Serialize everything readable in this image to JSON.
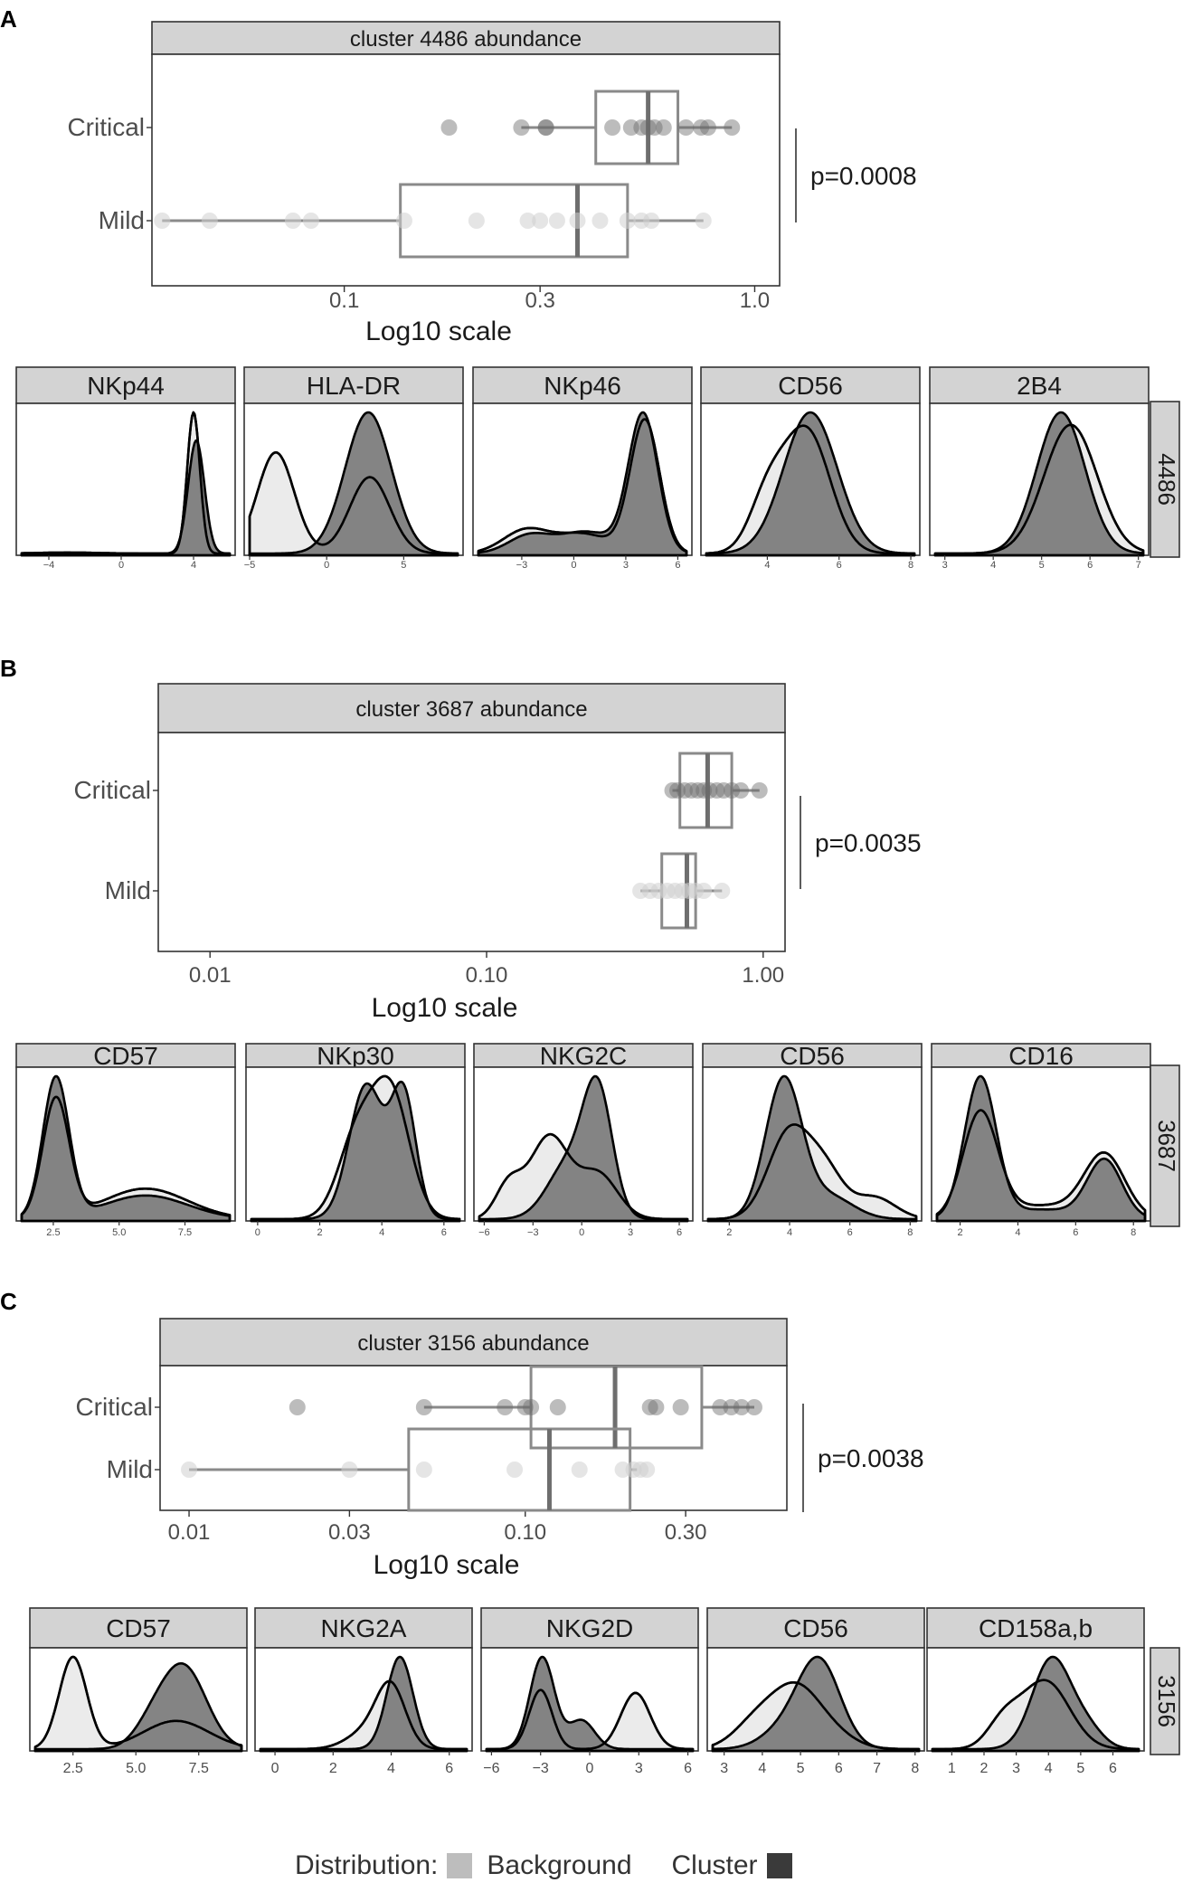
{
  "legend": {
    "title": "Distribution:",
    "items": [
      {
        "label": "Background",
        "color": "#bdbdbd"
      },
      {
        "label": "Cluster",
        "color": "#3a3a3a"
      }
    ]
  },
  "colors": {
    "background_fill": "#ebebeb",
    "cluster_fill": "#7a7a7a",
    "strip": "#d3d3d3",
    "box": "#8a8a8a"
  },
  "chart_data": [
    {
      "panel": "A",
      "type": "boxplot",
      "title": "cluster 4486 abundance",
      "xlabel": "Log10 scale",
      "scale": "log10",
      "xlim": [
        0.034,
        1.15
      ],
      "ticks": [
        0.1,
        0.3,
        1.0
      ],
      "tick_labels": [
        "0.1",
        "0.3",
        "1.0"
      ],
      "groups": [
        {
          "name": "Critical",
          "whisker": [
            0.27,
            0.88
          ],
          "box": [
            0.41,
            0.65
          ],
          "median": 0.55,
          "points": [
            0.18,
            0.27,
            0.31,
            0.31,
            0.45,
            0.5,
            0.53,
            0.55,
            0.57,
            0.6,
            0.68,
            0.74,
            0.77,
            0.88
          ]
        },
        {
          "name": "Mild",
          "whisker": [
            0.036,
            0.75
          ],
          "box": [
            0.137,
            0.49
          ],
          "median": 0.37,
          "points": [
            0.036,
            0.047,
            0.075,
            0.083,
            0.14,
            0.21,
            0.28,
            0.3,
            0.33,
            0.37,
            0.42,
            0.49,
            0.53,
            0.56,
            0.75
          ]
        }
      ],
      "pvalue": "p=0.0008",
      "densities": {
        "cluster_label": "4486",
        "markers": [
          {
            "name": "NKp44",
            "xlim": [
              -5.5,
              6
            ],
            "ticks": [
              -4,
              0,
              4
            ],
            "tick_labels": [
              "−4",
              "0",
              "4"
            ],
            "background": [
              {
                "m": 4.0,
                "s": 0.35,
                "w": 0.97
              },
              {
                "m": -3.0,
                "s": 1.6,
                "w": 0.03
              }
            ],
            "cluster": [
              {
                "m": 4.15,
                "s": 0.45,
                "w": 1.0
              }
            ]
          },
          {
            "name": "HLA-DR",
            "xlim": [
              -5,
              8.5
            ],
            "ticks": [
              -5,
              0,
              5
            ],
            "tick_labels": [
              "−5",
              "0",
              "5"
            ],
            "background": [
              {
                "m": -3.3,
                "s": 1.2,
                "w": 0.55
              },
              {
                "m": 2.8,
                "s": 1.3,
                "w": 0.45
              }
            ],
            "cluster": [
              {
                "m": 2.7,
                "s": 1.5,
                "w": 1.0
              }
            ]
          },
          {
            "name": "NKp46",
            "xlim": [
              -5.5,
              6.5
            ],
            "ticks": [
              -3,
              0,
              3,
              6
            ],
            "tick_labels": [
              "−3",
              "0",
              "3",
              "6"
            ],
            "background": [
              {
                "m": -2.8,
                "s": 1.3,
                "w": 0.17
              },
              {
                "m": 0.5,
                "s": 1.6,
                "w": 0.18
              },
              {
                "m": 4.1,
                "s": 0.85,
                "w": 0.65
              }
            ],
            "cluster": [
              {
                "m": -2.6,
                "s": 1.2,
                "w": 0.12
              },
              {
                "m": 0.7,
                "s": 1.6,
                "w": 0.2
              },
              {
                "m": 4.0,
                "s": 0.85,
                "w": 0.68
              }
            ]
          },
          {
            "name": "CD56",
            "xlim": [
              2.3,
              8.1
            ],
            "ticks": [
              4,
              6,
              8
            ],
            "tick_labels": [
              "4",
              "6",
              "8"
            ],
            "background": [
              {
                "m": 5.1,
                "s": 0.65,
                "w": 0.75
              },
              {
                "m": 4.0,
                "s": 0.5,
                "w": 0.25
              }
            ],
            "cluster": [
              {
                "m": 5.2,
                "s": 0.75,
                "w": 1.0
              }
            ]
          },
          {
            "name": "2B4",
            "xlim": [
              2.8,
              7.1
            ],
            "ticks": [
              3,
              4,
              5,
              6,
              7
            ],
            "tick_labels": [
              "3",
              "4",
              "5",
              "6",
              "7"
            ],
            "background": [
              {
                "m": 5.6,
                "s": 0.55,
                "w": 1.0
              }
            ],
            "cluster": [
              {
                "m": 5.4,
                "s": 0.5,
                "w": 1.0
              }
            ]
          }
        ]
      }
    },
    {
      "panel": "B",
      "type": "boxplot",
      "title": "cluster 3687 abundance",
      "xlabel": "Log10 scale",
      "scale": "log10",
      "xlim": [
        0.0065,
        1.2
      ],
      "ticks": [
        0.01,
        0.1,
        1.0
      ],
      "tick_labels": [
        "0.01",
        "0.10",
        "1.00"
      ],
      "groups": [
        {
          "name": "Critical",
          "whisker": [
            0.47,
            0.97
          ],
          "box": [
            0.5,
            0.77
          ],
          "median": 0.63,
          "points": [
            0.47,
            0.49,
            0.52,
            0.55,
            0.58,
            0.61,
            0.64,
            0.68,
            0.72,
            0.77,
            0.83,
            0.97
          ]
        },
        {
          "name": "Mild",
          "whisker": [
            0.36,
            0.71
          ],
          "box": [
            0.43,
            0.57
          ],
          "median": 0.53,
          "points": [
            0.36,
            0.39,
            0.42,
            0.45,
            0.48,
            0.51,
            0.54,
            0.57,
            0.61,
            0.71
          ]
        }
      ],
      "pvalue": "p=0.0035",
      "densities": {
        "cluster_label": "3687",
        "markers": [
          {
            "name": "CD57",
            "xlim": [
              1.3,
              9.2
            ],
            "ticks": [
              2.5,
              5.0,
              7.5
            ],
            "tick_labels": [
              "2.5",
              "5.0",
              "7.5"
            ],
            "background": [
              {
                "m": 2.6,
                "s": 0.5,
                "w": 0.55
              },
              {
                "m": 6.0,
                "s": 1.6,
                "w": 0.45
              }
            ],
            "cluster": [
              {
                "m": 2.6,
                "s": 0.5,
                "w": 0.65
              },
              {
                "m": 6.0,
                "s": 1.6,
                "w": 0.35
              }
            ]
          },
          {
            "name": "NKp30",
            "xlim": [
              -0.2,
              6.5
            ],
            "ticks": [
              0,
              2,
              4,
              6
            ],
            "tick_labels": [
              "0",
              "2",
              "4",
              "6"
            ],
            "background": [
              {
                "m": 4.3,
                "s": 0.6,
                "w": 0.6
              },
              {
                "m": 3.2,
                "s": 0.6,
                "w": 0.4
              }
            ],
            "cluster": [
              {
                "m": 3.5,
                "s": 0.55,
                "w": 0.6
              },
              {
                "m": 4.7,
                "s": 0.4,
                "w": 0.4
              }
            ]
          },
          {
            "name": "NKG2C",
            "xlim": [
              -6.3,
              6.5
            ],
            "ticks": [
              -6,
              -3,
              0,
              3,
              6
            ],
            "tick_labels": [
              "−6",
              "−3",
              "0",
              "3",
              "6"
            ],
            "background": [
              {
                "m": -2.0,
                "s": 1.2,
                "w": 0.55
              },
              {
                "m": -4.5,
                "s": 0.8,
                "w": 0.15
              },
              {
                "m": 1.0,
                "s": 1.2,
                "w": 0.3
              }
            ],
            "cluster": [
              {
                "m": 1.0,
                "s": 0.9,
                "w": 0.6
              },
              {
                "m": -0.8,
                "s": 1.3,
                "w": 0.4
              }
            ]
          },
          {
            "name": "CD56",
            "xlim": [
              1.3,
              8.2
            ],
            "ticks": [
              2,
              4,
              6,
              8
            ],
            "tick_labels": [
              "2",
              "4",
              "6",
              "8"
            ],
            "background": [
              {
                "m": 4.0,
                "s": 0.7,
                "w": 0.6
              },
              {
                "m": 5.2,
                "s": 0.6,
                "w": 0.25
              },
              {
                "m": 6.8,
                "s": 0.7,
                "w": 0.15
              }
            ],
            "cluster": [
              {
                "m": 3.8,
                "s": 0.6,
                "w": 0.82
              },
              {
                "m": 5.3,
                "s": 0.8,
                "w": 0.18
              }
            ]
          },
          {
            "name": "CD16",
            "xlim": [
              1.2,
              8.4
            ],
            "ticks": [
              2,
              4,
              6,
              8
            ],
            "tick_labels": [
              "2",
              "4",
              "6",
              "8"
            ],
            "background": [
              {
                "m": 2.7,
                "s": 0.6,
                "w": 0.5
              },
              {
                "m": 7.0,
                "s": 0.7,
                "w": 0.35
              },
              {
                "m": 4.8,
                "s": 1.4,
                "w": 0.15
              }
            ],
            "cluster": [
              {
                "m": 2.7,
                "s": 0.55,
                "w": 0.62
              },
              {
                "m": 7.0,
                "s": 0.6,
                "w": 0.28
              },
              {
                "m": 4.8,
                "s": 1.3,
                "w": 0.1
              }
            ]
          }
        ]
      }
    },
    {
      "panel": "C",
      "type": "boxplot",
      "title": "cluster 3156 abundance",
      "xlabel": "Log10 scale",
      "scale": "log10",
      "xlim": [
        0.0082,
        0.6
      ],
      "ticks": [
        0.01,
        0.03,
        0.1,
        0.3
      ],
      "tick_labels": [
        "0.01",
        "0.03",
        "0.10",
        "0.30"
      ],
      "groups": [
        {
          "name": "Critical",
          "whisker": [
            0.05,
            0.48
          ],
          "box": [
            0.104,
            0.335
          ],
          "median": 0.185,
          "points": [
            0.021,
            0.05,
            0.087,
            0.1,
            0.104,
            0.125,
            0.235,
            0.245,
            0.29,
            0.38,
            0.41,
            0.44,
            0.48
          ]
        },
        {
          "name": "Mild",
          "whisker": [
            0.01,
            0.215
          ],
          "box": [
            0.045,
            0.205
          ],
          "median": 0.118,
          "points": [
            0.01,
            0.03,
            0.05,
            0.093,
            0.145,
            0.195,
            0.21,
            0.22,
            0.23
          ]
        }
      ],
      "pvalue": "p=0.0038",
      "densities": {
        "cluster_label": "3156",
        "markers": [
          {
            "name": "CD57",
            "xlim": [
              1.0,
              9.2
            ],
            "ticks": [
              2.5,
              5.0,
              7.5
            ],
            "tick_labels": [
              "2.5",
              "5.0",
              "7.5"
            ],
            "background": [
              {
                "m": 2.5,
                "s": 0.55,
                "w": 0.58
              },
              {
                "m": 6.6,
                "s": 1.3,
                "w": 0.42
              }
            ],
            "cluster": [
              {
                "m": 6.9,
                "s": 0.9,
                "w": 0.85
              },
              {
                "m": 5.6,
                "s": 0.7,
                "w": 0.15
              }
            ]
          },
          {
            "name": "NKG2A",
            "xlim": [
              -0.5,
              6.6
            ],
            "ticks": [
              0,
              2,
              4,
              6
            ],
            "tick_labels": [
              "0",
              "2",
              "4",
              "6"
            ],
            "background": [
              {
                "m": 4.0,
                "s": 0.5,
                "w": 0.7
              },
              {
                "m": 3.2,
                "s": 0.7,
                "w": 0.3
              }
            ],
            "cluster": [
              {
                "m": 4.3,
                "s": 0.45,
                "w": 1.0
              }
            ]
          },
          {
            "name": "NKG2D",
            "xlim": [
              -6.3,
              6.3
            ],
            "ticks": [
              -6,
              -3,
              0,
              3,
              6
            ],
            "tick_labels": [
              "−6",
              "−3",
              "0",
              "3",
              "6"
            ],
            "background": [
              {
                "m": -3.0,
                "s": 0.7,
                "w": 0.45
              },
              {
                "m": 2.8,
                "s": 0.9,
                "w": 0.55
              }
            ],
            "cluster": [
              {
                "m": -2.9,
                "s": 0.75,
                "w": 0.75
              },
              {
                "m": -0.5,
                "s": 0.8,
                "w": 0.25
              }
            ]
          },
          {
            "name": "CD56",
            "xlim": [
              2.7,
              8.1
            ],
            "ticks": [
              3,
              4,
              5,
              6,
              7,
              8
            ],
            "tick_labels": [
              "3",
              "4",
              "5",
              "6",
              "7",
              "8"
            ],
            "background": [
              {
                "m": 4.9,
                "s": 0.6,
                "w": 0.55
              },
              {
                "m": 3.9,
                "s": 0.6,
                "w": 0.3
              },
              {
                "m": 5.8,
                "s": 0.6,
                "w": 0.15
              }
            ],
            "cluster": [
              {
                "m": 5.5,
                "s": 0.55,
                "w": 0.8
              },
              {
                "m": 4.6,
                "s": 0.6,
                "w": 0.2
              }
            ]
          },
          {
            "name": "CD158a,b",
            "xlim": [
              0.4,
              6.8
            ],
            "ticks": [
              1,
              2,
              3,
              4,
              5,
              6
            ],
            "tick_labels": [
              "1",
              "2",
              "3",
              "4",
              "5",
              "6"
            ],
            "background": [
              {
                "m": 3.9,
                "s": 0.75,
                "w": 0.8
              },
              {
                "m": 2.6,
                "s": 0.5,
                "w": 0.2
              }
            ],
            "cluster": [
              {
                "m": 4.1,
                "s": 0.6,
                "w": 0.85
              },
              {
                "m": 5.2,
                "s": 0.5,
                "w": 0.15
              }
            ]
          }
        ]
      }
    }
  ]
}
